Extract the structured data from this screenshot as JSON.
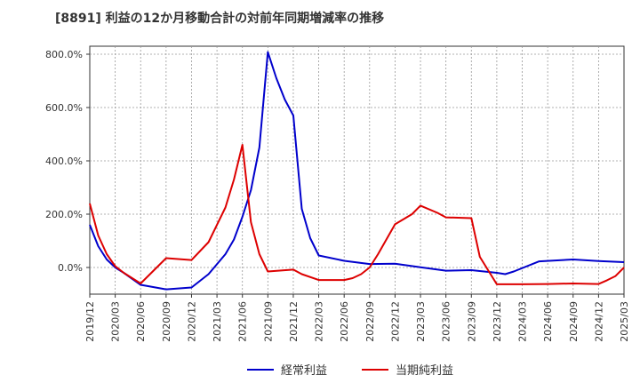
{
  "chart_data": {
    "type": "line",
    "title": "[8891]  利益の12か月移動合計の対前年同期増減率の推移",
    "xlabel": "",
    "ylabel": "",
    "ylim": [
      -100,
      830
    ],
    "y_ticks": [
      0,
      200,
      400,
      600,
      800
    ],
    "y_tick_labels": [
      "0.0%",
      "200.0%",
      "400.0%",
      "600.0%",
      "800.0%"
    ],
    "x_tick_labels": [
      "2019/12",
      "2020/03",
      "2020/06",
      "2020/09",
      "2020/12",
      "2021/03",
      "2021/06",
      "2021/09",
      "2021/12",
      "2022/03",
      "2022/06",
      "2022/09",
      "2022/12",
      "2023/03",
      "2023/06",
      "2023/09",
      "2023/12",
      "2024/03",
      "2024/06",
      "2024/09",
      "2024/12",
      "2025/03"
    ],
    "grid": true,
    "legend_position": "bottom",
    "series": [
      {
        "name": "経常利益",
        "color": "#0000cc",
        "points": [
          [
            0,
            160
          ],
          [
            1,
            80
          ],
          [
            2,
            30
          ],
          [
            3,
            0
          ],
          [
            4,
            -20
          ],
          [
            6,
            -65
          ],
          [
            9,
            -82
          ],
          [
            12,
            -75
          ],
          [
            14,
            -25
          ],
          [
            16,
            50
          ],
          [
            17,
            105
          ],
          [
            18,
            190
          ],
          [
            19,
            290
          ],
          [
            20,
            450
          ],
          [
            21,
            808
          ],
          [
            22,
            710
          ],
          [
            23,
            630
          ],
          [
            24,
            570
          ],
          [
            25,
            220
          ],
          [
            26,
            110
          ],
          [
            27,
            45
          ],
          [
            30,
            25
          ],
          [
            33,
            13
          ],
          [
            36,
            14
          ],
          [
            39,
            1
          ],
          [
            42,
            -12
          ],
          [
            45,
            -10
          ],
          [
            48,
            -20
          ],
          [
            49,
            -25
          ],
          [
            50,
            -15
          ],
          [
            53,
            23
          ],
          [
            57,
            30
          ],
          [
            60,
            24
          ],
          [
            63,
            20
          ]
        ]
      },
      {
        "name": "当期純利益",
        "color": "#dd0000",
        "points": [
          [
            0,
            240
          ],
          [
            1,
            120
          ],
          [
            2,
            50
          ],
          [
            3,
            5
          ],
          [
            4,
            -20
          ],
          [
            6,
            -60
          ],
          [
            9,
            35
          ],
          [
            12,
            28
          ],
          [
            14,
            95
          ],
          [
            16,
            225
          ],
          [
            17,
            330
          ],
          [
            18,
            460
          ],
          [
            19,
            170
          ],
          [
            20,
            50
          ],
          [
            21,
            -15
          ],
          [
            24,
            -8
          ],
          [
            25,
            -25
          ],
          [
            27,
            -47
          ],
          [
            30,
            -47
          ],
          [
            31,
            -40
          ],
          [
            32,
            -25
          ],
          [
            33,
            0
          ],
          [
            34,
            50
          ],
          [
            36,
            162
          ],
          [
            38,
            200
          ],
          [
            39,
            232
          ],
          [
            41,
            205
          ],
          [
            42,
            188
          ],
          [
            45,
            185
          ],
          [
            46,
            40
          ],
          [
            48,
            -63
          ],
          [
            51,
            -63
          ],
          [
            54,
            -62
          ],
          [
            57,
            -60
          ],
          [
            60,
            -62
          ],
          [
            61,
            -48
          ],
          [
            62,
            -32
          ],
          [
            63,
            0
          ]
        ]
      }
    ]
  }
}
